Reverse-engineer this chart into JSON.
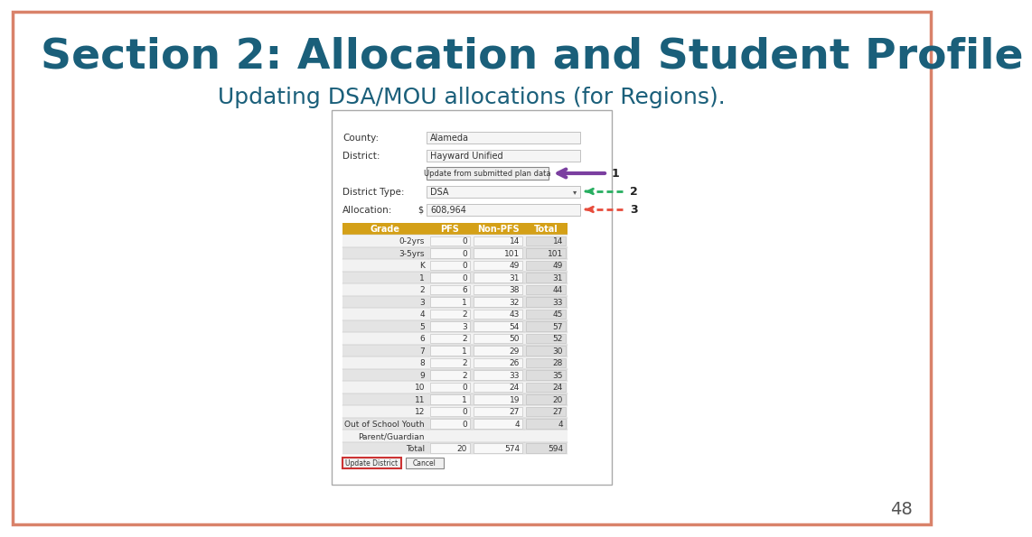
{
  "title": "Section 2: Allocation and Student Profile",
  "subtitle": "Updating DSA/MOU allocations (for Regions).",
  "title_color": "#1a5f7a",
  "subtitle_color": "#1a5f7a",
  "background_color": "#ffffff",
  "border_color": "#d9826a",
  "slide_number": "48",
  "county_label": "County:",
  "county_value": "Alameda",
  "district_label": "District:",
  "district_value": "Hayward Unified",
  "update_button_text": "Update from submitted plan data",
  "district_type_label": "District Type:",
  "district_type_value": "DSA",
  "allocation_label": "Allocation:",
  "allocation_value": "608,964",
  "table_headers": [
    "Grade",
    "PFS",
    "Non-PFS",
    "Total"
  ],
  "table_header_bg": "#d4a017",
  "table_header_color": "#ffffff",
  "table_rows": [
    [
      "0-2yrs",
      "0",
      "14",
      "14"
    ],
    [
      "3-5yrs",
      "0",
      "101",
      "101"
    ],
    [
      "K",
      "0",
      "49",
      "49"
    ],
    [
      "1",
      "0",
      "31",
      "31"
    ],
    [
      "2",
      "6",
      "38",
      "44"
    ],
    [
      "3",
      "1",
      "32",
      "33"
    ],
    [
      "4",
      "2",
      "43",
      "45"
    ],
    [
      "5",
      "3",
      "54",
      "57"
    ],
    [
      "6",
      "2",
      "50",
      "52"
    ],
    [
      "7",
      "1",
      "29",
      "30"
    ],
    [
      "8",
      "2",
      "26",
      "28"
    ],
    [
      "9",
      "2",
      "33",
      "35"
    ],
    [
      "10",
      "0",
      "24",
      "24"
    ],
    [
      "11",
      "1",
      "19",
      "20"
    ],
    [
      "12",
      "0",
      "27",
      "27"
    ],
    [
      "Out of School Youth",
      "0",
      "4",
      "4"
    ],
    [
      "Parent/Guardian",
      "",
      "",
      ""
    ],
    [
      "Total",
      "20",
      "574",
      "594"
    ]
  ],
  "row_alt_color": "#e0e0e0",
  "row_white_color": "#f0f0f0",
  "update_district_button": "Update District",
  "cancel_button": "Cancel",
  "arrow1_color": "#7b3fa0",
  "arrow2_color": "#27ae60",
  "arrow3_color": "#e74c3c",
  "label1": "1",
  "label2": "2",
  "label3": "3",
  "panel_bg": "#f8f8f8",
  "panel_border": "#999999"
}
